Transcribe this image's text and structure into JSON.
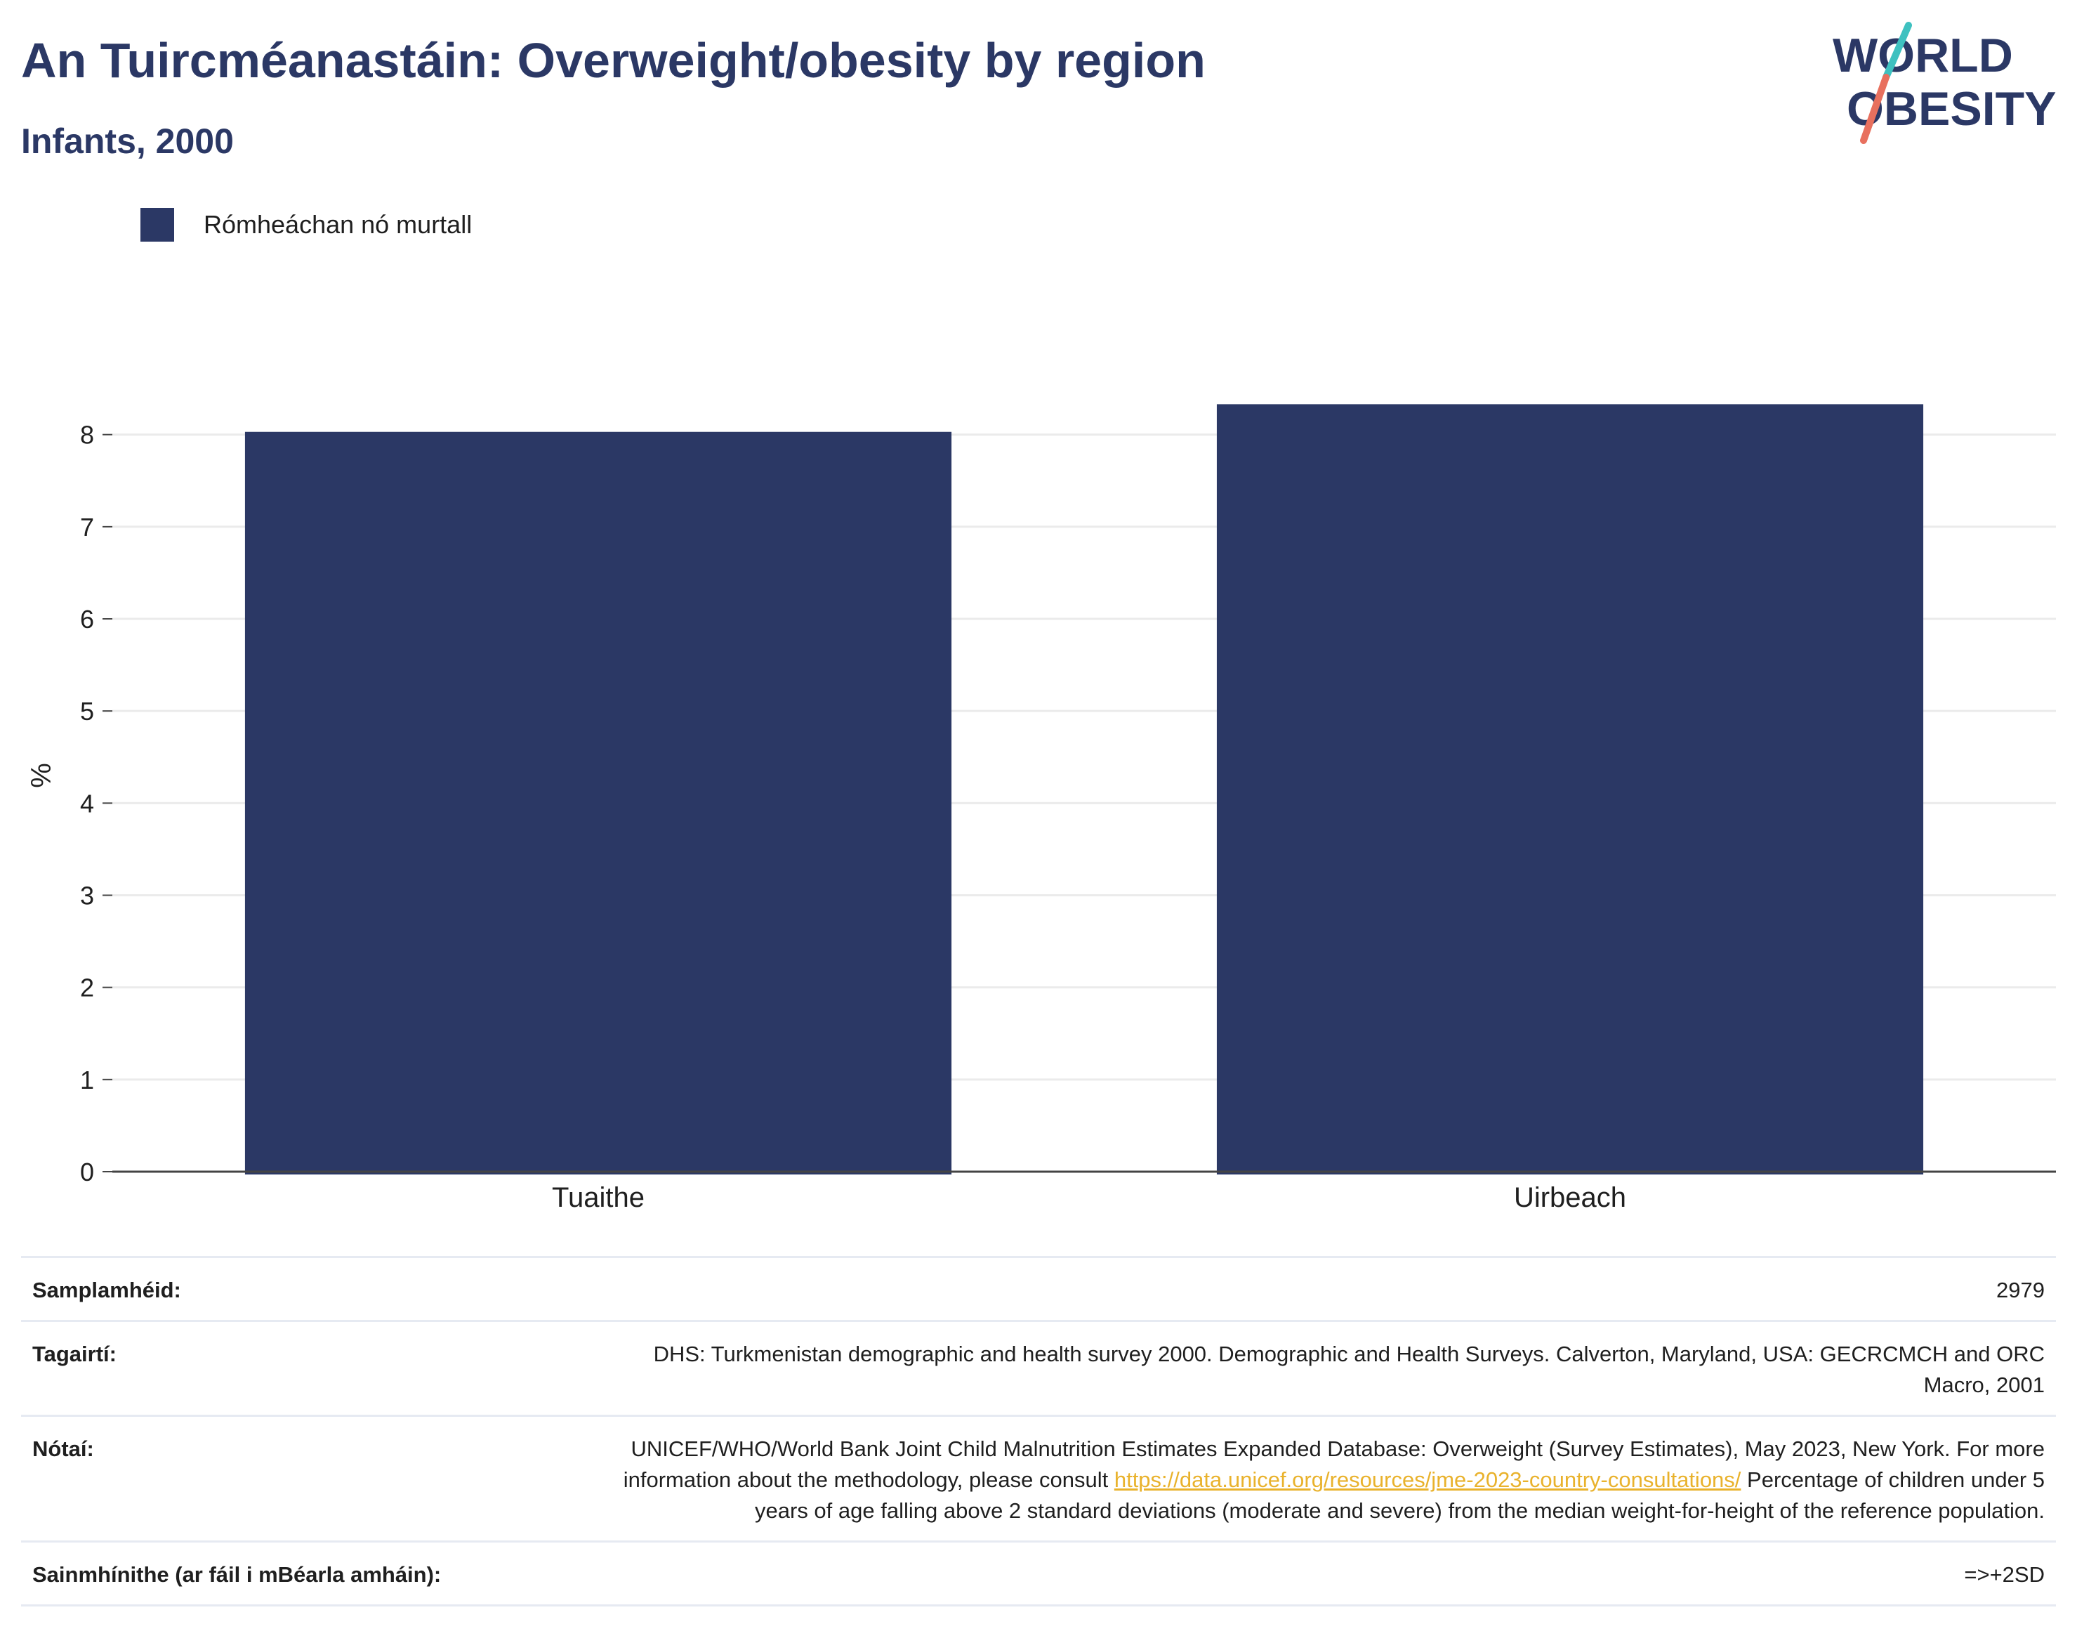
{
  "header": {
    "title": "An Tuircméanastáin: Overweight/obesity by region",
    "subtitle": "Infants, 2000"
  },
  "logo": {
    "line1": "WORLD",
    "line2": "OBESITY"
  },
  "colors": {
    "bar": "#2b3865",
    "title": "#2b3865",
    "accent_teal": "#3ec1c0",
    "accent_coral": "#e8705e",
    "link": "#e9b22c"
  },
  "chart_data": {
    "type": "bar",
    "categories": [
      "Tuaithe",
      "Uirbeach"
    ],
    "series": [
      {
        "name": "Rómheáchan nó murtall",
        "values": [
          8.03,
          8.33
        ]
      }
    ],
    "ylabel": "%",
    "ylim": [
      0,
      8.6
    ],
    "yticks": [
      0,
      1,
      2,
      3,
      4,
      5,
      6,
      7,
      8
    ],
    "grid": true,
    "legend": "top-left"
  },
  "info": {
    "sample_label": "Samplamhéid:",
    "sample_value": "2979",
    "refs_label": "Tagairtí:",
    "refs_value": "DHS: Turkmenistan demographic and health survey 2000. Demographic and Health Surveys. Calverton, Maryland, USA: GECRCMCH and ORC Macro, 2001",
    "notes_label": "Nótaí:",
    "notes_text_1": "UNICEF/WHO/World Bank Joint Child Malnutrition Estimates Expanded Database: Overweight (Survey Estimates), May 2023, New York. For more information about the methodology, please consult",
    "notes_link": "https://data.unicef.org/resources/jme-2023-country-consultations/",
    "notes_text_2": "Percentage of children under 5 years of age falling above 2 standard deviations (moderate and severe) from the median weight-for-height of the reference population.",
    "defs_label": "Sainmhínithe (ar fáil i mBéarla amháin):",
    "defs_value": "=>+2SD"
  }
}
